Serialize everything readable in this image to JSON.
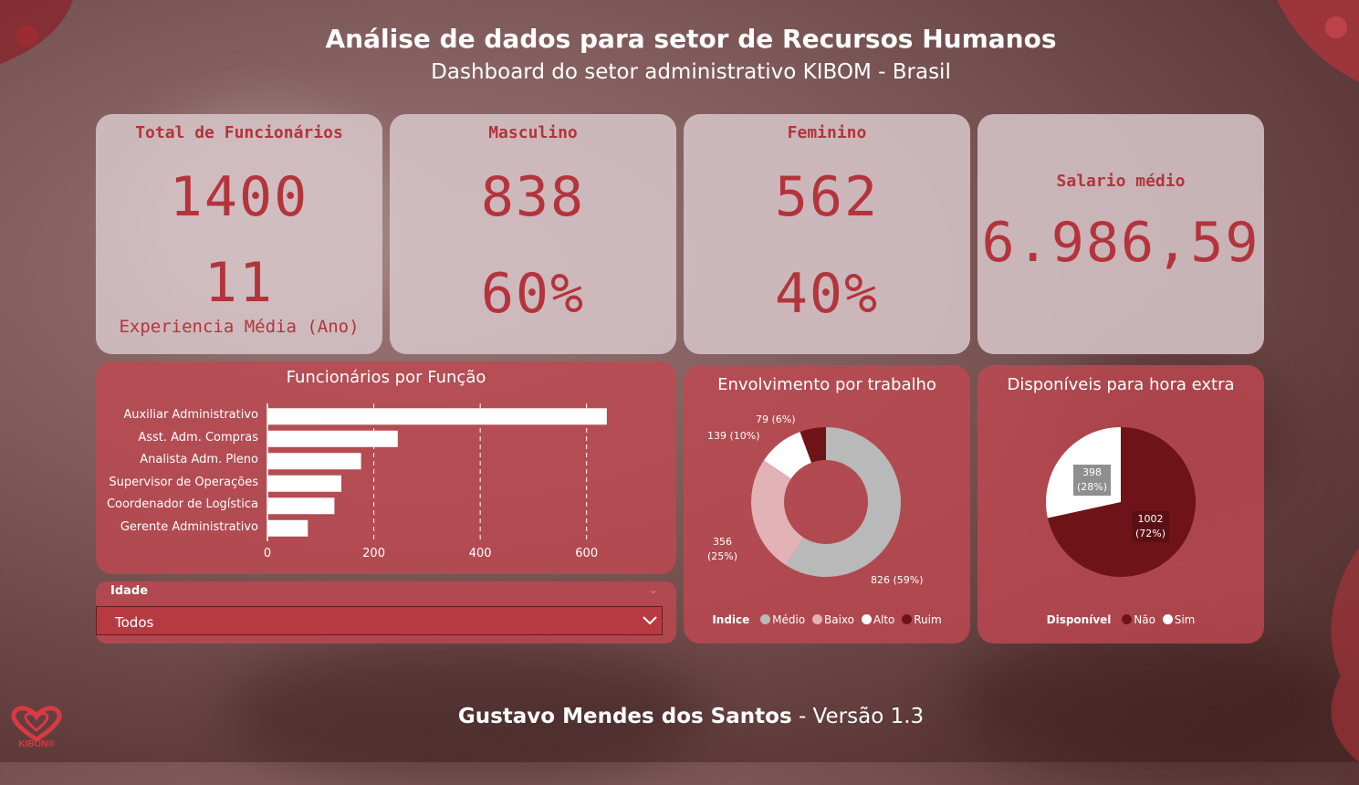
{
  "header": {
    "title": "Análise de dados para setor de Recursos Humanos",
    "subtitle": "Dashboard do setor administrativo KIBOM - Brasil"
  },
  "kpis": {
    "total": {
      "label": "Total de Funcionários",
      "value": "1400",
      "exp_value": "11",
      "exp_label": "Experiencia Média (Ano)"
    },
    "masculino": {
      "label": "Masculino",
      "value": "838",
      "pct": "60%"
    },
    "feminino": {
      "label": "Feminino",
      "value": "562",
      "pct": "40%"
    },
    "salario": {
      "label": "Salario médio",
      "value": "6.986,59"
    }
  },
  "filter": {
    "label": "Idade",
    "selected": "Todos"
  },
  "footer": {
    "author": "Gustavo Mendes dos Santos",
    "version": " - Versão 1.3"
  },
  "logo": {
    "text": "KIBON®"
  },
  "colors": {
    "accent": "#b3343c",
    "bar": "#ffffff",
    "medio": "#b9b9b9",
    "baixo": "#e3b2b6",
    "alto": "#ffffff",
    "ruim": "#6e1419"
  },
  "chart_data": [
    {
      "type": "bar",
      "orientation": "horizontal",
      "title": "Funcionários por Função",
      "categories": [
        "Auxiliar Administrativo",
        "Asst. Adm. Compras",
        "Analista Adm. Pleno",
        "Supervisor de Operações",
        "Coordenador de Logística",
        "Gerente Administrativo"
      ],
      "values": [
        638,
        245,
        176,
        139,
        126,
        76
      ],
      "xlim": [
        0,
        700
      ],
      "xticks": [
        0,
        200,
        400,
        600
      ],
      "grid": true
    },
    {
      "type": "pie",
      "variant": "donut",
      "title": "Envolvimento por trabalho",
      "legend_title": "Indice",
      "legend_position": "bottom",
      "labels": [
        "Médio",
        "Baixo",
        "Alto",
        "Ruim"
      ],
      "values": [
        826,
        356,
        139,
        79
      ],
      "percent": [
        "59%",
        "25%",
        "10%",
        "6%"
      ],
      "data_labels": [
        "826 (59%)",
        "356\n(25%)",
        "139 (10%)",
        "79 (6%)"
      ]
    },
    {
      "type": "pie",
      "title": "Disponíveis para hora extra",
      "legend_title": "Disponível",
      "legend_position": "bottom",
      "labels": [
        "Não",
        "Sim"
      ],
      "values": [
        1002,
        398
      ],
      "percent": [
        "72%",
        "28%"
      ],
      "data_labels": [
        "1002\n(72%)",
        "398\n(28%)"
      ]
    }
  ]
}
